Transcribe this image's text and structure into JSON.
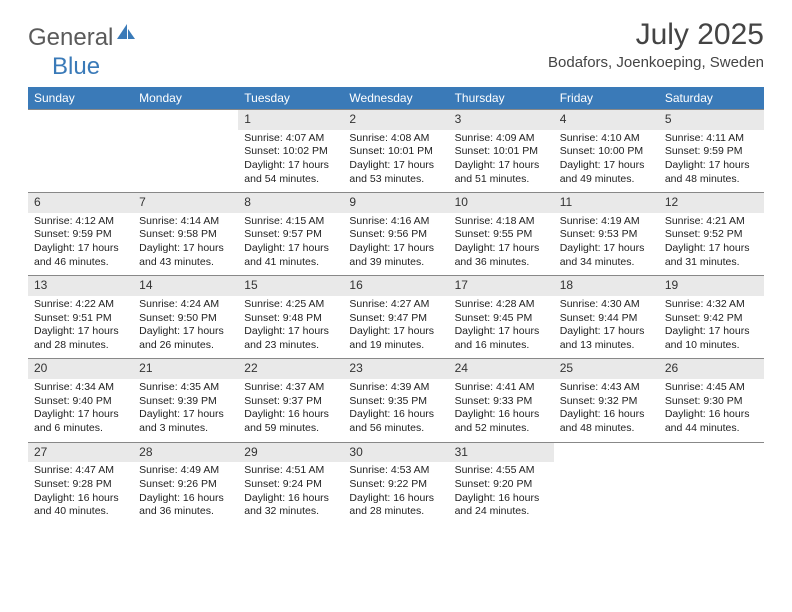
{
  "logo": {
    "text1": "General",
    "text2": "Blue"
  },
  "title": "July 2025",
  "location": "Bodafors, Joenkoeping, Sweden",
  "colors": {
    "header_bg": "#3a7ab8",
    "header_text": "#ffffff",
    "daynum_bg": "#e9e9e9",
    "border": "#888888",
    "text": "#222222",
    "title_text": "#444444"
  },
  "weekdays": [
    "Sunday",
    "Monday",
    "Tuesday",
    "Wednesday",
    "Thursday",
    "Friday",
    "Saturday"
  ],
  "weeks": [
    [
      null,
      null,
      {
        "n": "1",
        "sr": "4:07 AM",
        "ss": "10:02 PM",
        "dl": "17 hours and 54 minutes."
      },
      {
        "n": "2",
        "sr": "4:08 AM",
        "ss": "10:01 PM",
        "dl": "17 hours and 53 minutes."
      },
      {
        "n": "3",
        "sr": "4:09 AM",
        "ss": "10:01 PM",
        "dl": "17 hours and 51 minutes."
      },
      {
        "n": "4",
        "sr": "4:10 AM",
        "ss": "10:00 PM",
        "dl": "17 hours and 49 minutes."
      },
      {
        "n": "5",
        "sr": "4:11 AM",
        "ss": "9:59 PM",
        "dl": "17 hours and 48 minutes."
      }
    ],
    [
      {
        "n": "6",
        "sr": "4:12 AM",
        "ss": "9:59 PM",
        "dl": "17 hours and 46 minutes."
      },
      {
        "n": "7",
        "sr": "4:14 AM",
        "ss": "9:58 PM",
        "dl": "17 hours and 43 minutes."
      },
      {
        "n": "8",
        "sr": "4:15 AM",
        "ss": "9:57 PM",
        "dl": "17 hours and 41 minutes."
      },
      {
        "n": "9",
        "sr": "4:16 AM",
        "ss": "9:56 PM",
        "dl": "17 hours and 39 minutes."
      },
      {
        "n": "10",
        "sr": "4:18 AM",
        "ss": "9:55 PM",
        "dl": "17 hours and 36 minutes."
      },
      {
        "n": "11",
        "sr": "4:19 AM",
        "ss": "9:53 PM",
        "dl": "17 hours and 34 minutes."
      },
      {
        "n": "12",
        "sr": "4:21 AM",
        "ss": "9:52 PM",
        "dl": "17 hours and 31 minutes."
      }
    ],
    [
      {
        "n": "13",
        "sr": "4:22 AM",
        "ss": "9:51 PM",
        "dl": "17 hours and 28 minutes."
      },
      {
        "n": "14",
        "sr": "4:24 AM",
        "ss": "9:50 PM",
        "dl": "17 hours and 26 minutes."
      },
      {
        "n": "15",
        "sr": "4:25 AM",
        "ss": "9:48 PM",
        "dl": "17 hours and 23 minutes."
      },
      {
        "n": "16",
        "sr": "4:27 AM",
        "ss": "9:47 PM",
        "dl": "17 hours and 19 minutes."
      },
      {
        "n": "17",
        "sr": "4:28 AM",
        "ss": "9:45 PM",
        "dl": "17 hours and 16 minutes."
      },
      {
        "n": "18",
        "sr": "4:30 AM",
        "ss": "9:44 PM",
        "dl": "17 hours and 13 minutes."
      },
      {
        "n": "19",
        "sr": "4:32 AM",
        "ss": "9:42 PM",
        "dl": "17 hours and 10 minutes."
      }
    ],
    [
      {
        "n": "20",
        "sr": "4:34 AM",
        "ss": "9:40 PM",
        "dl": "17 hours and 6 minutes."
      },
      {
        "n": "21",
        "sr": "4:35 AM",
        "ss": "9:39 PM",
        "dl": "17 hours and 3 minutes."
      },
      {
        "n": "22",
        "sr": "4:37 AM",
        "ss": "9:37 PM",
        "dl": "16 hours and 59 minutes."
      },
      {
        "n": "23",
        "sr": "4:39 AM",
        "ss": "9:35 PM",
        "dl": "16 hours and 56 minutes."
      },
      {
        "n": "24",
        "sr": "4:41 AM",
        "ss": "9:33 PM",
        "dl": "16 hours and 52 minutes."
      },
      {
        "n": "25",
        "sr": "4:43 AM",
        "ss": "9:32 PM",
        "dl": "16 hours and 48 minutes."
      },
      {
        "n": "26",
        "sr": "4:45 AM",
        "ss": "9:30 PM",
        "dl": "16 hours and 44 minutes."
      }
    ],
    [
      {
        "n": "27",
        "sr": "4:47 AM",
        "ss": "9:28 PM",
        "dl": "16 hours and 40 minutes."
      },
      {
        "n": "28",
        "sr": "4:49 AM",
        "ss": "9:26 PM",
        "dl": "16 hours and 36 minutes."
      },
      {
        "n": "29",
        "sr": "4:51 AM",
        "ss": "9:24 PM",
        "dl": "16 hours and 32 minutes."
      },
      {
        "n": "30",
        "sr": "4:53 AM",
        "ss": "9:22 PM",
        "dl": "16 hours and 28 minutes."
      },
      {
        "n": "31",
        "sr": "4:55 AM",
        "ss": "9:20 PM",
        "dl": "16 hours and 24 minutes."
      },
      null,
      null
    ]
  ],
  "labels": {
    "sunrise": "Sunrise:",
    "sunset": "Sunset:",
    "daylight": "Daylight:"
  }
}
